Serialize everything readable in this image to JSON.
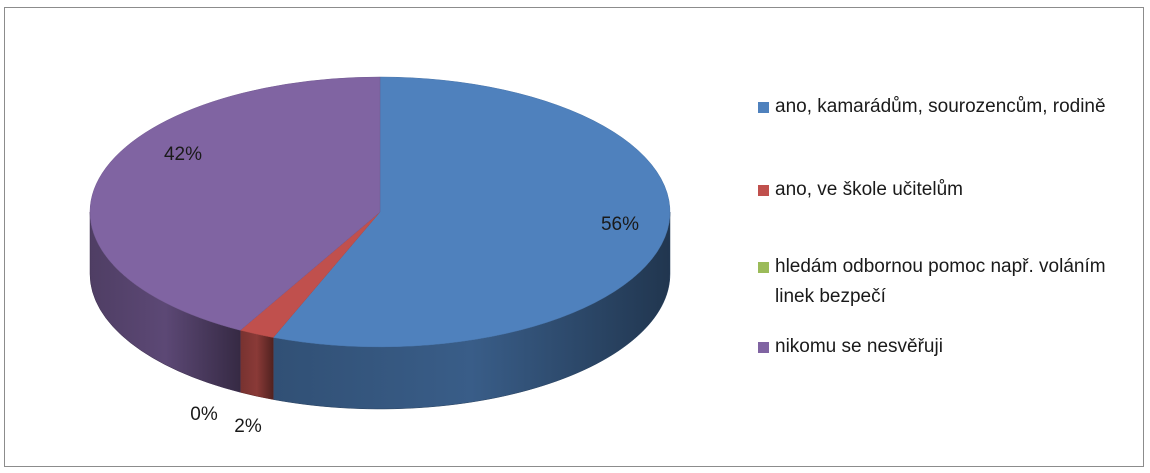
{
  "chart_data": {
    "type": "pie",
    "title": "",
    "slices": [
      {
        "label": "ano, kamarádům, sourozencům, rodině",
        "value": 56,
        "display": "56%",
        "color": "#4f81bd"
      },
      {
        "label": "ano, ve škole učitelům",
        "value": 2,
        "display": "2%",
        "color": "#c0504d"
      },
      {
        "label": "hledám odbornou pomoc např. voláním linek bezpečí",
        "value": 0,
        "display": "0%",
        "color": "#9bbb59"
      },
      {
        "label": "nikomu se nesvěřuji",
        "value": 42,
        "display": "42%",
        "color": "#8064a2"
      }
    ],
    "legend_position": "right",
    "style": "3d-pie"
  }
}
